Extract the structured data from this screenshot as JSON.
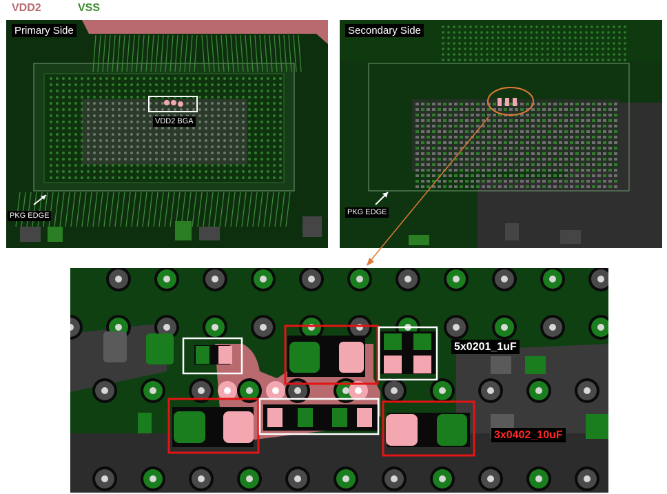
{
  "legend": {
    "vdd2": "VDD2",
    "vss": "VSS"
  },
  "colors": {
    "vdd2": "#b86a6f",
    "vss": "#3a8a2c",
    "board_bg": "#0d2f0e",
    "pad_pink": "#f2a7b1",
    "pad_green": "#1a7e1f",
    "pad_gray": "#5a5a5a",
    "highlight_red": "#e31414",
    "highlight_white": "#ffffff",
    "arrow_orange": "#e07a36",
    "label_red": "#ff2a2a"
  },
  "panels": {
    "primary": {
      "title": "Primary Side",
      "bga_label": "VDD2 BGA",
      "edge_label": "PKG EDGE"
    },
    "secondary": {
      "title": "Secondary Side",
      "edge_label": "PKG EDGE"
    }
  },
  "zoom": {
    "label_0201": "5x0201_1uF",
    "label_0402": "3x0402_10uF"
  }
}
